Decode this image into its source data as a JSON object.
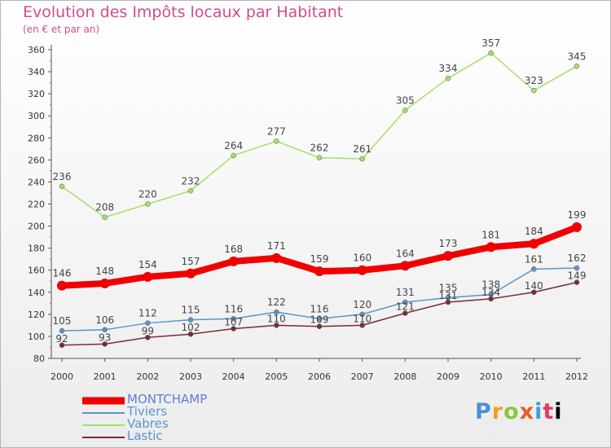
{
  "chart_data": {
    "type": "line",
    "title": "Evolution des Impôts locaux par Habitant",
    "subtitle": "(en € et par an)",
    "x": [
      "2000",
      "2001",
      "2002",
      "2003",
      "2004",
      "2005",
      "2006",
      "2007",
      "2008",
      "2009",
      "2010",
      "2011",
      "2012"
    ],
    "ylim": [
      80,
      360
    ],
    "yticks": [
      80,
      100,
      120,
      140,
      160,
      180,
      200,
      220,
      240,
      260,
      280,
      300,
      320,
      340,
      360
    ],
    "grid": false,
    "legend_position": "bottom-left",
    "series": [
      {
        "name": "MONTCHAMP",
        "values": [
          146,
          148,
          154,
          157,
          168,
          171,
          159,
          160,
          164,
          173,
          181,
          184,
          199
        ],
        "color": "#f00000"
      },
      {
        "name": "Tiviers",
        "values": [
          105,
          106,
          112,
          115,
          116,
          122,
          116,
          120,
          131,
          135,
          138,
          161,
          162
        ],
        "color": "#5b95c9"
      },
      {
        "name": "Vabres",
        "values": [
          236,
          208,
          220,
          232,
          264,
          277,
          262,
          261,
          305,
          334,
          357,
          323,
          345
        ],
        "color": "#a3e06a"
      },
      {
        "name": "Lastic",
        "values": [
          92,
          93,
          99,
          102,
          107,
          110,
          109,
          110,
          121,
          131,
          134,
          140,
          149
        ],
        "color": "#7a2b34"
      }
    ]
  },
  "legend": {
    "items": [
      {
        "label": "MONTCHAMP",
        "color": "#f00000",
        "text_color": "#5b7fd6"
      },
      {
        "label": "Tiviers",
        "color": "#5b95c9",
        "text_color": "#5b95c9"
      },
      {
        "label": "Vabres",
        "color": "#a3e06a",
        "text_color": "#5b95c9"
      },
      {
        "label": "Lastic",
        "color": "#7a2b34",
        "text_color": "#5b95c9"
      }
    ]
  },
  "logo": {
    "text": "Proxiti"
  }
}
